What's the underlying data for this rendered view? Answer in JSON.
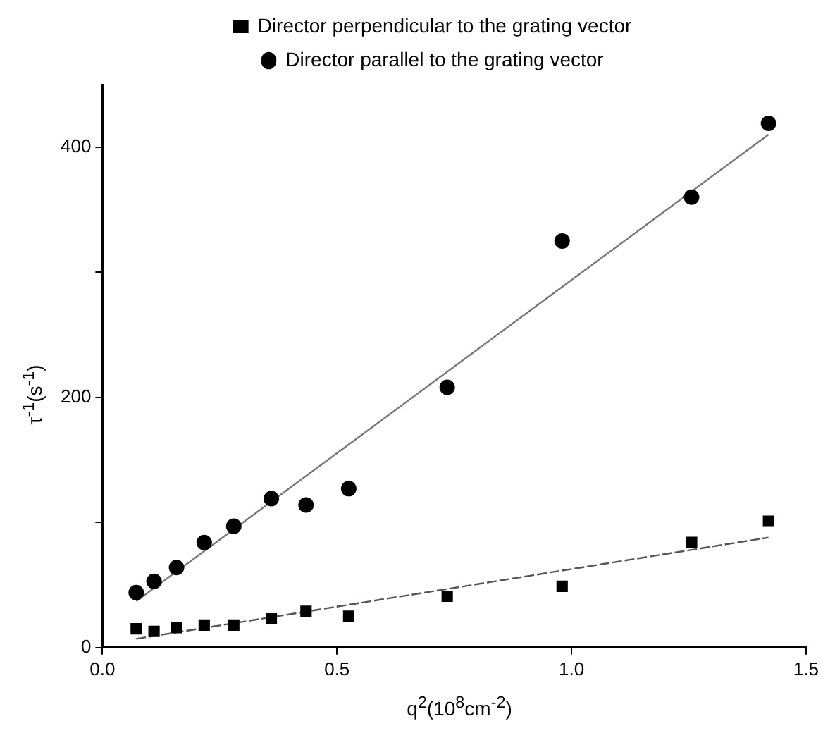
{
  "chart_data": {
    "type": "scatter",
    "xlabel": "q$^{2}$(10$^{8}$cm$^{-2}$)",
    "ylabel": "τ$^{-1}$(s$^{-1}$)",
    "xlim": [
      0,
      1.5
    ],
    "xticks": [
      {
        "value": 0,
        "label": "0.0"
      },
      {
        "value": 0.5,
        "label": "0.5"
      },
      {
        "value": 1,
        "label": "1.0"
      },
      {
        "value": 1.5,
        "label": "1.5"
      }
    ],
    "ylim": [
      0,
      450
    ],
    "yticks": [
      0,
      {
        "value": 100,
        "label": null
      },
      200,
      {
        "value": 300,
        "label": null
      },
      400
    ],
    "grid": false,
    "legend": "top",
    "series": [
      {
        "name": "Director perpendicular to the grating vector",
        "color": "#000000",
        "marker": "square",
        "x": [
          0.072,
          0.11,
          0.158,
          0.217,
          0.28,
          0.36,
          0.434,
          0.525,
          0.735,
          0.98,
          1.256,
          1.42
        ],
        "values": [
          15,
          13,
          16,
          18,
          18,
          23,
          29,
          25,
          41,
          49,
          84,
          101
        ]
      },
      {
        "name": "Director parallel to the grating vector",
        "color": "#000000",
        "marker": "circle",
        "x": [
          0.072,
          0.11,
          0.158,
          0.217,
          0.28,
          0.36,
          0.434,
          0.525,
          0.735,
          0.98,
          1.256,
          1.42
        ],
        "values": [
          44,
          53,
          64,
          84,
          97,
          119,
          114,
          127,
          208,
          325,
          360,
          419
        ]
      },
      {
        "type": "line",
        "color": "#555555",
        "line_style": "dashed",
        "marker": "none",
        "x": [
          0.072,
          1.42
        ],
        "values": [
          7,
          88
        ]
      },
      {
        "type": "line",
        "color": "#777777",
        "line_style": "solid",
        "marker": "none",
        "x": [
          0.072,
          1.42
        ],
        "values": [
          37,
          410
        ]
      }
    ]
  }
}
